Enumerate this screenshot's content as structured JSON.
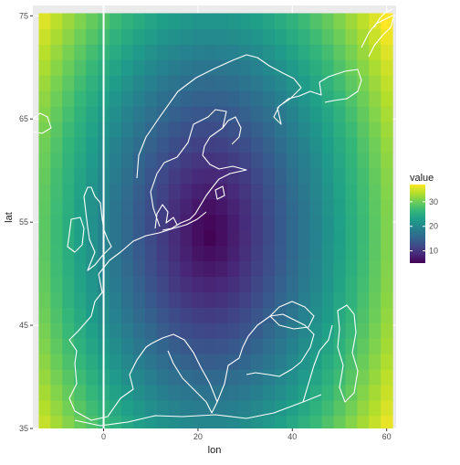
{
  "chart_data": {
    "type": "heatmap",
    "title": "",
    "xlabel": "lon",
    "ylabel": "lat",
    "xlim": [
      -15,
      62
    ],
    "ylim": [
      35,
      76
    ],
    "x_ticks": [
      0,
      20,
      40,
      60
    ],
    "x_tick_labels": [
      "0",
      "20",
      "40",
      "60"
    ],
    "y_ticks": [
      35,
      45,
      55,
      65,
      75
    ],
    "y_tick_labels": [
      "35",
      "45",
      "55",
      "65",
      "75"
    ],
    "grid": "on",
    "legend_position": "right",
    "legend": {
      "title": "value",
      "breaks": [
        10,
        20,
        30
      ],
      "labels": [
        "10",
        "20",
        "30"
      ],
      "range": [
        5,
        37
      ]
    },
    "value_model": {
      "center_lon": 22.5,
      "center_lat": 54,
      "min_value": 5,
      "max_value": 37
    },
    "cells": {
      "lon_start": -12.5,
      "lon_end": 60,
      "lon_step": 2.5,
      "lat_start": 35.5,
      "lat_end": 74.5,
      "lat_step": 1.5
    },
    "overlays": [
      "coastlines",
      "meridian-line"
    ],
    "meridian_lon": 0
  },
  "colors": {
    "panel_bg": "#ebebeb",
    "grid": "#ffffff",
    "outline": "#ffffff",
    "viridis": [
      "#440154",
      "#482878",
      "#3e4a89",
      "#31688e",
      "#26828e",
      "#1f9e89",
      "#35b779",
      "#6ece58",
      "#b5de2b",
      "#fde725"
    ]
  }
}
